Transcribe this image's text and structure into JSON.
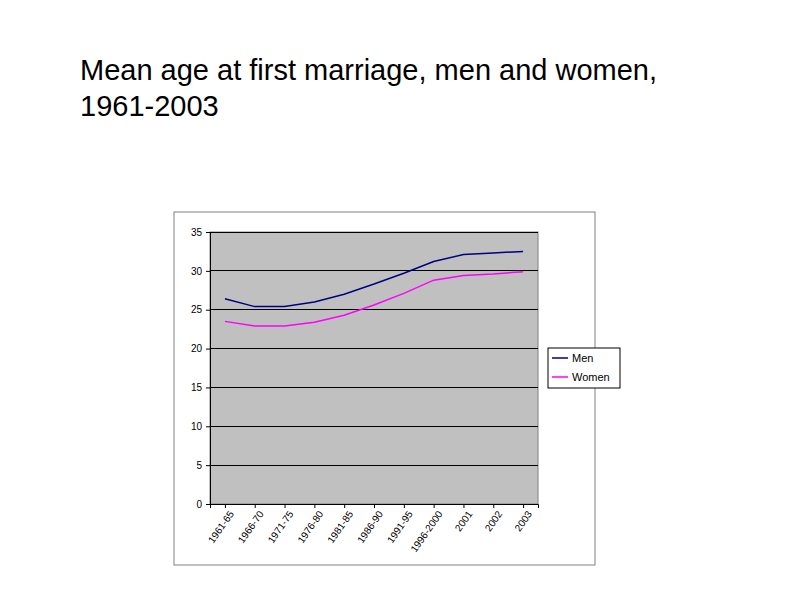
{
  "chart_data": {
    "type": "line",
    "title": "Mean age at first marriage, men and women, 1961-2003",
    "categories": [
      "1961-65",
      "1966-70",
      "1971-75",
      "1976-80",
      "1981-85",
      "1986-90",
      "1991-95",
      "1996-2000",
      "2001",
      "2002",
      "2003"
    ],
    "series": [
      {
        "name": "Men",
        "color": "#000080",
        "values": [
          26.4,
          25.4,
          25.4,
          26.0,
          27.0,
          28.3,
          29.7,
          31.2,
          32.1,
          32.3,
          32.5
        ]
      },
      {
        "name": "Women",
        "color": "#ff00ff",
        "values": [
          23.5,
          22.9,
          22.9,
          23.4,
          24.3,
          25.6,
          27.1,
          28.8,
          29.4,
          29.6,
          29.9
        ]
      }
    ],
    "ylim": [
      0,
      35
    ],
    "yticks": [
      0,
      5,
      10,
      15,
      20,
      25,
      30,
      35
    ],
    "grid": true,
    "legend": "right"
  }
}
